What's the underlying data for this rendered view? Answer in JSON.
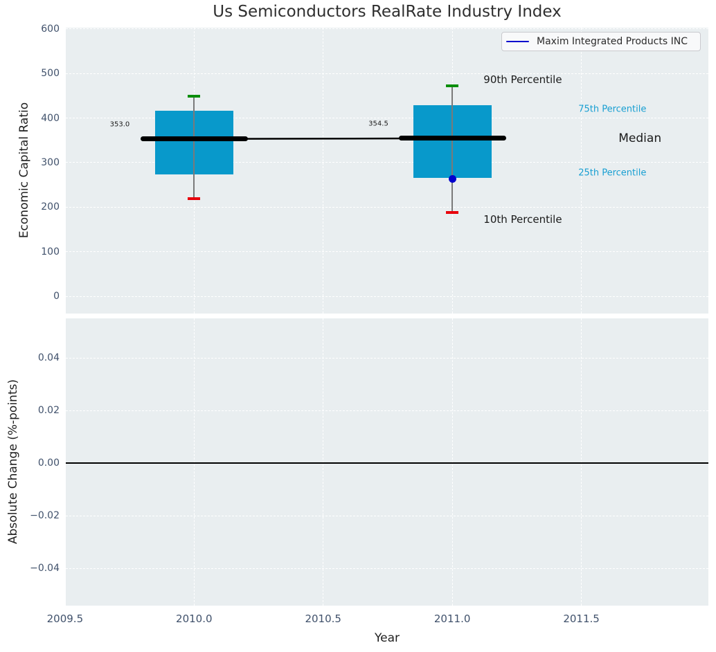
{
  "title": "Us Semiconductors RealRate Industry Index",
  "legend": {
    "label": "Maxim Integrated Products INC"
  },
  "colors": {
    "box_fill": "#0899cb",
    "whisker": "#7a7a7a",
    "cap_high": "#0b8e0b",
    "cap_low": "#e8000b",
    "median": "#000000",
    "company_point": "#0000cd",
    "plot_background": "#e9eef0",
    "grid": "#ffffff",
    "tick_label": "#40516b",
    "percentile_label": "#189fd2",
    "text": "#262626",
    "zero_line": "#000000"
  },
  "chart_data": [
    {
      "type": "box",
      "title": "Us Semiconductors RealRate Industry Index",
      "ylabel": "Economic Capital Ratio",
      "xlabel": "",
      "ylim": [
        -38.5,
        602.6
      ],
      "xlim": [
        2009.503,
        2011.992
      ],
      "grid": true,
      "legend_position": "upper right",
      "yticks": [
        {
          "label": "600",
          "value": 600
        },
        {
          "label": "500",
          "value": 500
        },
        {
          "label": "400",
          "value": 400
        },
        {
          "label": "300",
          "value": 300
        },
        {
          "label": "200",
          "value": 200
        },
        {
          "label": "100",
          "value": 100
        },
        {
          "label": "0",
          "value": 0
        }
      ],
      "xticks": [
        {
          "label": "2009.5",
          "value": 2009.5
        },
        {
          "label": "2010.0",
          "value": 2010.0
        },
        {
          "label": "2010.5",
          "value": 2010.5
        },
        {
          "label": "2011.0",
          "value": 2011.0
        },
        {
          "label": "2011.5",
          "value": 2011.5
        }
      ],
      "boxes": [
        {
          "x": 2010,
          "p10": 219,
          "p25": 273,
          "median": 353.0,
          "p75": 416,
          "p90": 449,
          "median_label": "353.0"
        },
        {
          "x": 2011,
          "p10": 188,
          "p25": 266,
          "median": 354.5,
          "p75": 428,
          "p90": 472,
          "median_label": "354.5"
        }
      ],
      "box_width_years": 0.303,
      "median_line_width_years": 0.416,
      "median_connector": [
        [
          2010,
          353.0
        ],
        [
          2011,
          354.5
        ]
      ],
      "company_series": {
        "name": "Maxim Integrated Products INC",
        "points": [
          [
            2011,
            263
          ]
        ]
      },
      "annotations": [
        {
          "text": "353.0",
          "x": 2009.712,
          "y": 385,
          "size": 10,
          "color": "#1a1a1a"
        },
        {
          "text": "354.5",
          "x": 2010.714,
          "y": 387,
          "size": 10,
          "color": "#1a1a1a"
        },
        {
          "text": "90th Percentile",
          "x": 2011.273,
          "y": 486,
          "size": 15,
          "color": "#1a1a1a"
        },
        {
          "text": "10th Percentile",
          "x": 2011.273,
          "y": 172,
          "size": 15,
          "color": "#1a1a1a"
        },
        {
          "text": "75th Percentile",
          "x": 2011.62,
          "y": 419,
          "size": 13,
          "color": "#189fd2"
        },
        {
          "text": "Median",
          "x": 2011.727,
          "y": 355,
          "size": 17,
          "color": "#1a1a1a"
        },
        {
          "text": "25th Percentile",
          "x": 2011.62,
          "y": 277,
          "size": 13,
          "color": "#189fd2"
        }
      ]
    },
    {
      "type": "line",
      "ylabel": "Absolute Change (%-points)",
      "xlabel": "Year",
      "ylim": [
        -0.0542,
        0.0551
      ],
      "xlim": [
        2009.503,
        2011.992
      ],
      "grid": true,
      "zero_line": 0.0,
      "yticks": [
        {
          "label": "0.04",
          "value": 0.04
        },
        {
          "label": "0.02",
          "value": 0.02
        },
        {
          "label": "0.00",
          "value": 0.0
        },
        {
          "label": "−0.02",
          "value": -0.02
        },
        {
          "label": "−0.04",
          "value": -0.04
        }
      ],
      "xticks": [
        {
          "label": "2009.5",
          "value": 2009.5
        },
        {
          "label": "2010.0",
          "value": 2010.0
        },
        {
          "label": "2010.5",
          "value": 2010.5
        },
        {
          "label": "2011.0",
          "value": 2011.0
        },
        {
          "label": "2011.5",
          "value": 2011.5
        }
      ],
      "series": []
    }
  ]
}
